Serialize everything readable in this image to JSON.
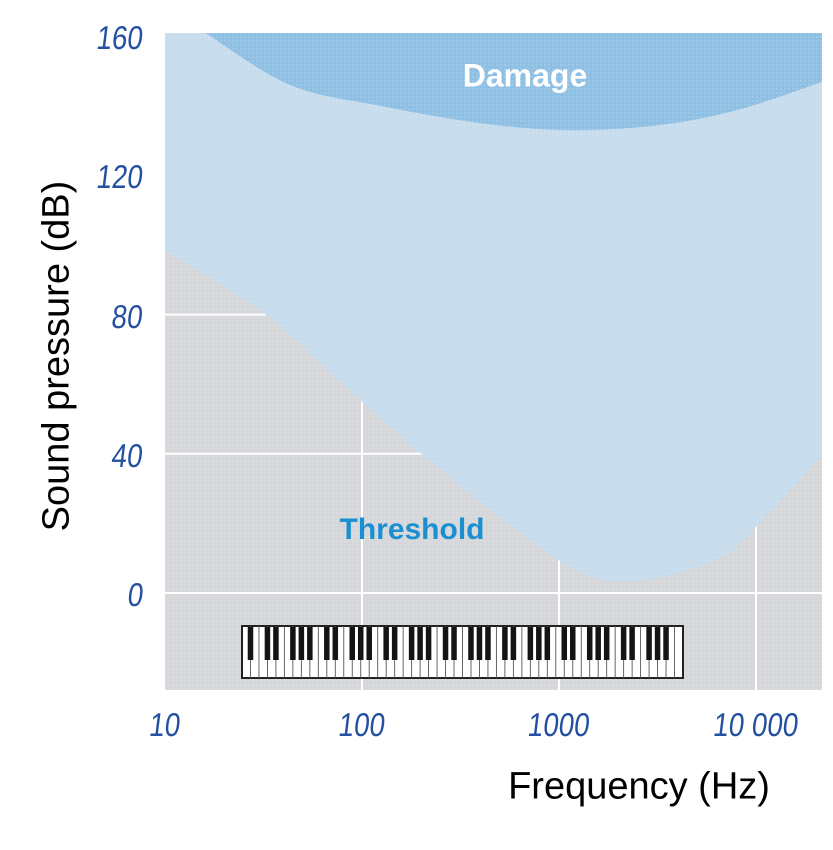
{
  "labels": {
    "y_axis_title": "Sound pressure (dB)",
    "x_axis_title": "Frequency (Hz)",
    "damage": "Damage",
    "threshold": "Threshold"
  },
  "colors": {
    "background": "#ffffff",
    "plot_gray": "#d5d7da",
    "audible_light_blue": "#c7dcec",
    "damage_blue": "#8fc0e4",
    "gridline_white": "#ffffff",
    "tick_text_blue": "#2350a0",
    "axis_title_black": "#000000",
    "threshold_label_blue": "#1a90d2",
    "damage_label_white": "#ffffff",
    "piano_white": "#ffffff",
    "piano_black": "#141414",
    "piano_border": "#222222"
  },
  "chart_data": {
    "type": "area",
    "title": "",
    "xlabel": "Frequency (Hz)",
    "ylabel": "Sound pressure (dB)",
    "x_scale": "log10",
    "xlim": [
      10,
      22000
    ],
    "ylim": [
      -27,
      161
    ],
    "grid": true,
    "legend": false,
    "x_ticks": [
      {
        "value": 10,
        "label": "10"
      },
      {
        "value": 100,
        "label": "100"
      },
      {
        "value": 1000,
        "label": "1000"
      },
      {
        "value": 10000,
        "label": "10 000"
      }
    ],
    "y_ticks": [
      {
        "value": 0,
        "label": "0"
      },
      {
        "value": 40,
        "label": "40"
      },
      {
        "value": 80,
        "label": "80"
      },
      {
        "value": 120,
        "label": "120"
      },
      {
        "value": 160,
        "label": "160"
      }
    ],
    "series": [
      {
        "name": "hearing_threshold_curve",
        "annotation": "Threshold",
        "units": [
          "Hz",
          "dB"
        ],
        "points": [
          [
            10,
            98.5
          ],
          [
            31.5,
            80.5
          ],
          [
            80,
            60
          ],
          [
            190,
            41
          ],
          [
            720,
            15
          ],
          [
            1500,
            4.5
          ],
          [
            2900,
            4
          ],
          [
            6600,
            10
          ],
          [
            10000,
            19
          ],
          [
            22000,
            40
          ]
        ]
      },
      {
        "name": "damage_threshold_curve",
        "annotation": "Damage",
        "units": [
          "Hz",
          "dB"
        ],
        "points": [
          [
            16,
            161
          ],
          [
            43,
            146
          ],
          [
            123,
            140
          ],
          [
            400,
            135
          ],
          [
            1150,
            133
          ],
          [
            3300,
            134.5
          ],
          [
            8300,
            139
          ],
          [
            22000,
            147
          ]
        ]
      }
    ],
    "regions": [
      {
        "name": "damage",
        "fill_key": "damage_blue"
      },
      {
        "name": "audible",
        "fill_key": "audible_light_blue"
      },
      {
        "name": "below-threshold",
        "fill_key": "plot_gray"
      }
    ],
    "piano": {
      "white_keys": 52,
      "black_keys": 36
    }
  }
}
